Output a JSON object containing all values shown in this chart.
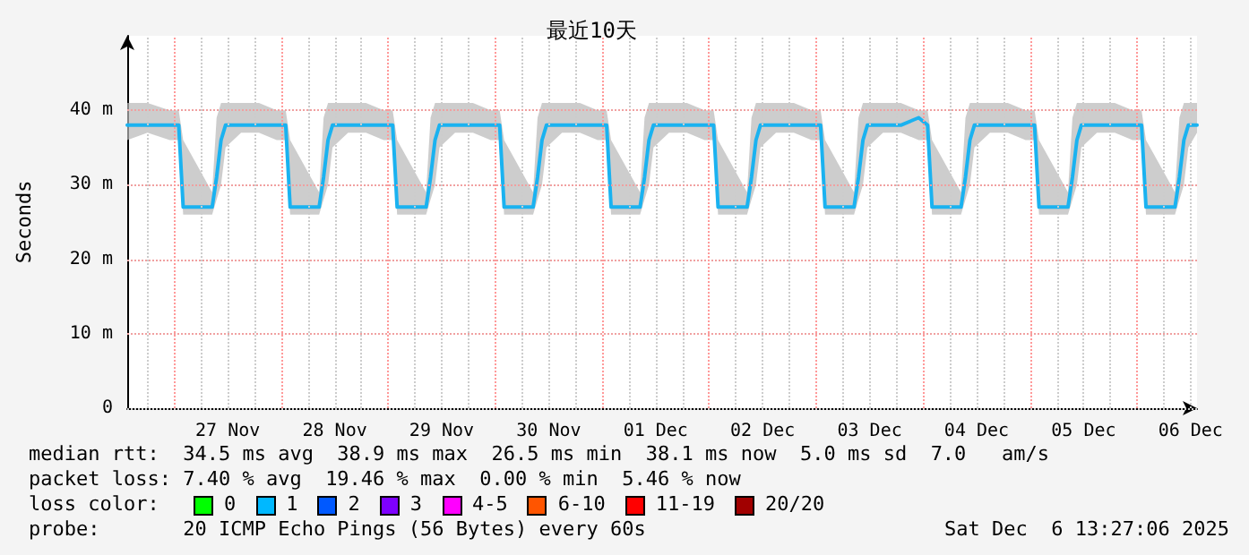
{
  "chart_data": {
    "type": "line",
    "title": "最近10天",
    "ylabel": "Seconds",
    "xlim": [
      "2025-11-26T13:27",
      "2025-12-06T13:27"
    ],
    "xticks": [
      {
        "value": "2025-11-26T18:00",
        "label": null
      },
      {
        "value": "2025-11-27T06:00",
        "label": null
      },
      {
        "value": "2025-11-27T12:00",
        "label": "27 Nov"
      },
      {
        "value": "2025-11-27T18:00",
        "label": null
      },
      {
        "value": "2025-11-28T06:00",
        "label": null
      },
      {
        "value": "2025-11-28T12:00",
        "label": "28 Nov"
      },
      {
        "value": "2025-11-28T18:00",
        "label": null
      },
      {
        "value": "2025-11-29T06:00",
        "label": null
      },
      {
        "value": "2025-11-29T12:00",
        "label": "29 Nov"
      },
      {
        "value": "2025-11-29T18:00",
        "label": null
      },
      {
        "value": "2025-11-30T06:00",
        "label": null
      },
      {
        "value": "2025-11-30T12:00",
        "label": "30 Nov"
      },
      {
        "value": "2025-11-30T18:00",
        "label": null
      },
      {
        "value": "2025-12-01T06:00",
        "label": null
      },
      {
        "value": "2025-12-01T12:00",
        "label": "01 Dec"
      },
      {
        "value": "2025-12-01T18:00",
        "label": null
      },
      {
        "value": "2025-12-02T06:00",
        "label": null
      },
      {
        "value": "2025-12-02T12:00",
        "label": "02 Dec"
      },
      {
        "value": "2025-12-02T18:00",
        "label": null
      },
      {
        "value": "2025-12-03T06:00",
        "label": null
      },
      {
        "value": "2025-12-03T12:00",
        "label": "03 Dec"
      },
      {
        "value": "2025-12-03T18:00",
        "label": null
      },
      {
        "value": "2025-12-04T06:00",
        "label": null
      },
      {
        "value": "2025-12-04T12:00",
        "label": "04 Dec"
      },
      {
        "value": "2025-12-04T18:00",
        "label": null
      },
      {
        "value": "2025-12-05T06:00",
        "label": null
      },
      {
        "value": "2025-12-05T12:00",
        "label": "05 Dec"
      },
      {
        "value": "2025-12-05T18:00",
        "label": null
      },
      {
        "value": "2025-12-06T06:00",
        "label": null
      },
      {
        "value": "2025-12-06T12:00",
        "label": "06 Dec"
      }
    ],
    "ylim": [
      0,
      50
    ],
    "yticks": [
      0,
      {
        "value": 10,
        "label": "10 m"
      },
      {
        "value": 20,
        "label": "20 m"
      },
      {
        "value": 30,
        "label": "30 m"
      },
      {
        "value": 40,
        "label": "40 m"
      }
    ],
    "grid": true,
    "marker": "none",
    "line_style": "solid",
    "ref_lines": [
      {
        "axis": "x",
        "value": "2025-11-27T00:00",
        "color": "#ff9999",
        "line_style": "dotted"
      },
      {
        "axis": "x",
        "value": "2025-11-28T00:00",
        "color": "#ff9999",
        "line_style": "dotted"
      },
      {
        "axis": "x",
        "value": "2025-11-29T00:00",
        "color": "#ff9999",
        "line_style": "dotted"
      },
      {
        "axis": "x",
        "value": "2025-11-30T00:00",
        "color": "#ff9999",
        "line_style": "dotted"
      },
      {
        "axis": "x",
        "value": "2025-12-01T00:00",
        "color": "#ff9999",
        "line_style": "dotted"
      },
      {
        "axis": "x",
        "value": "2025-12-02T00:00",
        "color": "#ff9999",
        "line_style": "dotted"
      },
      {
        "axis": "x",
        "value": "2025-12-03T00:00",
        "color": "#ff9999",
        "line_style": "dotted"
      },
      {
        "axis": "x",
        "value": "2025-12-04T00:00",
        "color": "#ff9999",
        "line_style": "dotted"
      },
      {
        "axis": "x",
        "value": "2025-12-05T00:00",
        "color": "#ff9999",
        "line_style": "dotted"
      },
      {
        "axis": "x",
        "value": "2025-12-06T00:00",
        "color": "#ff9999",
        "line_style": "dotted"
      }
    ],
    "series": [
      {
        "color": "#1ab2f0",
        "x": [
          "2025-11-26T13:27",
          "2025-11-26T18:00",
          "2025-11-26T23:00",
          "2025-11-27T01:00",
          "2025-11-27T02:00",
          "2025-11-27T08:30",
          "2025-11-27T09:30",
          "2025-11-27T10:30",
          "2025-11-27T11:30",
          "2025-11-27T15:00",
          "2025-11-27T19:00",
          "2025-11-27T23:00",
          "2025-11-28T01:00",
          "2025-11-28T02:00",
          "2025-11-28T08:30",
          "2025-11-28T09:30",
          "2025-11-28T10:30",
          "2025-11-28T11:30",
          "2025-11-28T15:00",
          "2025-11-28T19:00",
          "2025-11-28T23:00",
          "2025-11-29T01:00",
          "2025-11-29T02:00",
          "2025-11-29T08:30",
          "2025-11-29T09:30",
          "2025-11-29T10:30",
          "2025-11-29T11:30",
          "2025-11-29T15:00",
          "2025-11-29T19:00",
          "2025-11-29T23:00",
          "2025-11-30T01:00",
          "2025-11-30T02:00",
          "2025-11-30T08:30",
          "2025-11-30T09:30",
          "2025-11-30T10:30",
          "2025-11-30T11:30",
          "2025-11-30T15:00",
          "2025-11-30T19:00",
          "2025-11-30T23:00",
          "2025-12-01T01:00",
          "2025-12-01T02:00",
          "2025-12-01T08:30",
          "2025-12-01T09:30",
          "2025-12-01T10:30",
          "2025-12-01T11:30",
          "2025-12-01T15:00",
          "2025-12-01T19:00",
          "2025-12-01T23:00",
          "2025-12-02T01:00",
          "2025-12-02T02:00",
          "2025-12-02T08:30",
          "2025-12-02T09:30",
          "2025-12-02T10:30",
          "2025-12-02T11:30",
          "2025-12-02T15:00",
          "2025-12-02T19:00",
          "2025-12-02T23:00",
          "2025-12-03T01:00",
          "2025-12-03T02:00",
          "2025-12-03T08:30",
          "2025-12-03T09:30",
          "2025-12-03T10:30",
          "2025-12-03T11:30",
          "2025-12-03T15:00",
          "2025-12-03T19:00",
          "2025-12-03T23:00",
          "2025-12-04T01:00",
          "2025-12-04T02:00",
          "2025-12-04T08:30",
          "2025-12-04T09:30",
          "2025-12-04T10:30",
          "2025-12-04T11:30",
          "2025-12-04T15:00",
          "2025-12-04T19:00",
          "2025-12-04T23:00",
          "2025-12-05T01:00",
          "2025-12-05T02:00",
          "2025-12-05T08:30",
          "2025-12-05T09:30",
          "2025-12-05T10:30",
          "2025-12-05T11:30",
          "2025-12-05T15:00",
          "2025-12-05T19:00",
          "2025-12-05T23:00",
          "2025-12-06T01:00",
          "2025-12-06T02:00",
          "2025-12-06T08:30",
          "2025-12-06T09:30",
          "2025-12-06T10:30",
          "2025-12-06T11:30",
          "2025-12-06T13:27"
        ],
        "values": [
          38,
          38,
          38,
          38,
          27,
          27,
          31,
          36,
          38,
          38,
          38,
          38,
          38,
          27,
          27,
          31,
          36,
          38,
          38,
          38,
          38,
          38,
          27,
          27,
          31,
          36,
          38,
          38,
          38,
          38,
          38,
          27,
          27,
          31,
          36,
          38,
          38,
          38,
          38,
          38,
          27,
          27,
          31,
          36,
          38,
          38,
          38,
          38,
          38,
          27,
          27,
          31,
          36,
          38,
          38,
          38,
          38,
          38,
          27,
          27,
          31,
          36,
          38,
          38,
          38,
          39,
          38,
          27,
          27,
          31,
          36,
          38,
          38,
          38,
          38,
          38,
          27,
          27,
          31,
          36,
          38,
          38,
          38,
          38,
          38,
          27,
          27,
          31,
          36,
          38,
          38
        ],
        "lower": [
          36,
          37,
          36,
          36,
          26,
          26,
          28,
          30,
          35,
          37,
          37,
          36,
          36,
          26,
          26,
          28,
          30,
          35,
          37,
          37,
          36,
          36,
          26,
          26,
          28,
          30,
          35,
          37,
          37,
          36,
          36,
          26,
          26,
          28,
          30,
          35,
          37,
          37,
          36,
          36,
          26,
          26,
          28,
          30,
          35,
          37,
          37,
          36,
          36,
          26,
          26,
          28,
          30,
          35,
          37,
          37,
          36,
          36,
          26,
          26,
          28,
          30,
          35,
          37,
          37,
          36,
          36,
          26,
          26,
          28,
          30,
          35,
          37,
          37,
          36,
          36,
          26,
          26,
          28,
          30,
          35,
          37,
          37,
          36,
          36,
          26,
          26,
          28,
          30,
          35,
          37
        ],
        "upper": [
          41,
          41,
          40,
          40,
          36,
          29,
          39,
          41,
          41,
          41,
          41,
          40,
          40,
          36,
          29,
          39,
          41,
          41,
          41,
          41,
          40,
          40,
          36,
          29,
          39,
          41,
          41,
          41,
          41,
          40,
          40,
          36,
          29,
          39,
          41,
          41,
          41,
          41,
          40,
          40,
          36,
          29,
          39,
          41,
          41,
          41,
          41,
          40,
          40,
          36,
          29,
          39,
          41,
          41,
          41,
          41,
          40,
          40,
          36,
          29,
          39,
          41,
          41,
          41,
          41,
          40,
          40,
          36,
          29,
          39,
          41,
          41,
          41,
          41,
          40,
          40,
          36,
          29,
          39,
          41,
          41,
          41,
          41,
          40,
          40,
          36,
          29,
          39,
          41,
          41,
          41
        ]
      }
    ],
    "annotations": [
      "median rtt:  34.5 ms avg  38.9 ms max  26.5 ms min  38.1 ms now  5.0 ms sd  7.0   am/s",
      "packet loss: 7.40 % avg  19.46 % max  0.00 % min  5.46 % now",
      "loss color:",
      "0",
      "1",
      "2",
      "3",
      "4-5",
      "6-10",
      "11-19",
      "20/20",
      "probe:       20 ICMP Echo Pings (56 Bytes) every 60s",
      "Sat Dec  6 13:27:06 2025"
    ]
  }
}
